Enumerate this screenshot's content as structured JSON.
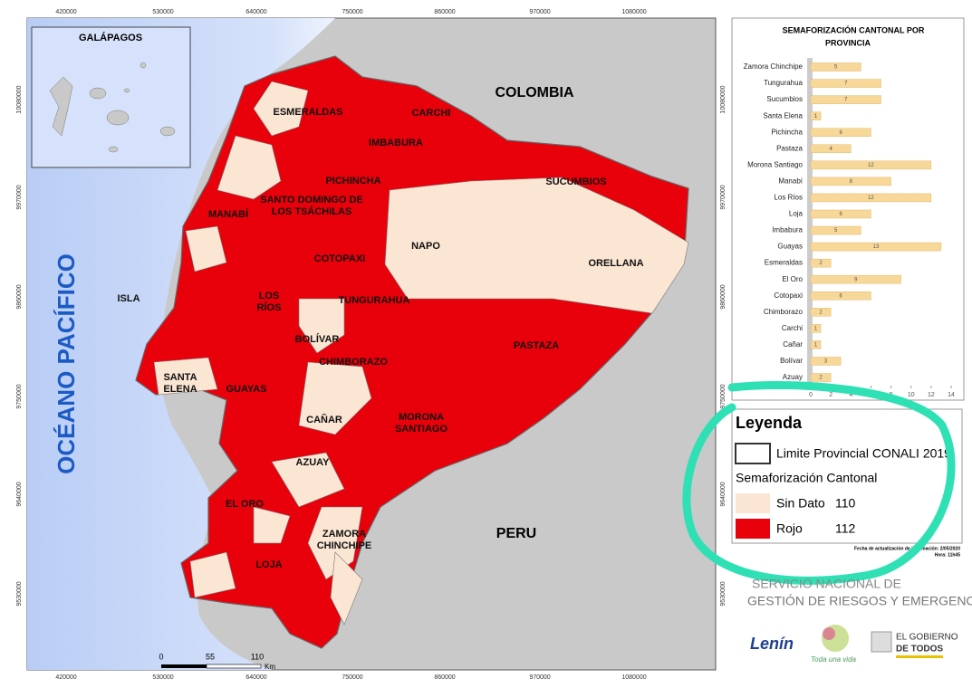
{
  "map": {
    "inset_title": "GALÁPAGOS",
    "ocean": "OCÉANO PACÍFICO",
    "countries": [
      "COLOMBIA",
      "PERU"
    ],
    "provinces": [
      [
        "ESMERALDAS"
      ],
      [
        "CARCHI"
      ],
      [
        "IMBABURA"
      ],
      [
        "PICHINCHA"
      ],
      [
        "SUCUMBIOS"
      ],
      [
        "SANTO DOMINGO DE",
        "LOS TSÁCHILAS"
      ],
      [
        "MANABÍ"
      ],
      [
        "NAPO"
      ],
      [
        "COTOPAXI"
      ],
      [
        "ORELLANA"
      ],
      [
        "ISLA"
      ],
      [
        "LOS",
        "RÍOS"
      ],
      [
        "TUNGURAHUA"
      ],
      [
        "BOLÍVAR"
      ],
      [
        "PASTAZA"
      ],
      [
        "CHIMBORAZO"
      ],
      [
        "SANTA",
        "ELENA"
      ],
      [
        "GUAYAS"
      ],
      [
        "CAÑAR"
      ],
      [
        "MORONA",
        "SANTIAGO"
      ],
      [
        "AZUAY"
      ],
      [
        "EL ORO"
      ],
      [
        "ZAMORA",
        "CHINCHIPE"
      ],
      [
        "LOJA"
      ]
    ],
    "easting": [
      420000,
      530000,
      640000,
      750000,
      860000,
      970000,
      1080000
    ],
    "northing": [
      10080000,
      9970000,
      9860000,
      9750000,
      9640000,
      9530000
    ],
    "scale": {
      "ticks": [
        "0",
        "55",
        "110"
      ],
      "unit": "Km"
    }
  },
  "chart_data": {
    "type": "bar",
    "orientation": "horizontal",
    "title": [
      "SEMAFORIZACIÓN CANTONAL POR",
      "PROVINCIA"
    ],
    "categories": [
      "Zamora Chinchipe",
      "Tungurahua",
      "Sucumbios",
      "Santa Elena",
      "Pichincha",
      "Pastaza",
      "Morona Santiago",
      "Manabí",
      "Los Ríos",
      "Loja",
      "Imbabura",
      "Guayas",
      "Esmeraldas",
      "El Oro",
      "Cotopaxi",
      "Chimborazo",
      "Carchi",
      "Cañar",
      "Bolívar",
      "Azuay"
    ],
    "values": [
      5,
      7,
      7,
      1,
      6,
      4,
      12,
      8,
      12,
      6,
      5,
      13,
      2,
      9,
      6,
      2,
      1,
      1,
      3,
      2
    ],
    "color": "#f8d898",
    "xlim": [
      0,
      14
    ],
    "xticks": [
      0,
      2,
      4,
      6,
      8,
      10,
      12,
      14
    ]
  },
  "legend": {
    "title": "Leyenda",
    "boundary": "Limite Provincial CONALI 2019",
    "subtitle": "Semaforización Cantonal",
    "items": [
      {
        "label": "Sin Dato",
        "count": 110
      },
      {
        "label": "Rojo",
        "count": 112
      }
    ]
  },
  "footer": {
    "date": "Fecha de actualización de información: 2/05/2020",
    "time": "Hora: 11h45",
    "agency": [
      "SERVICIO NACIONAL DE",
      "GESTIÓN DE RIESGOS Y EMERGENCIAS"
    ],
    "logos": [
      "Lenín",
      "Toda una vida",
      "EL GOBIERNO",
      "DE TODOS"
    ]
  }
}
